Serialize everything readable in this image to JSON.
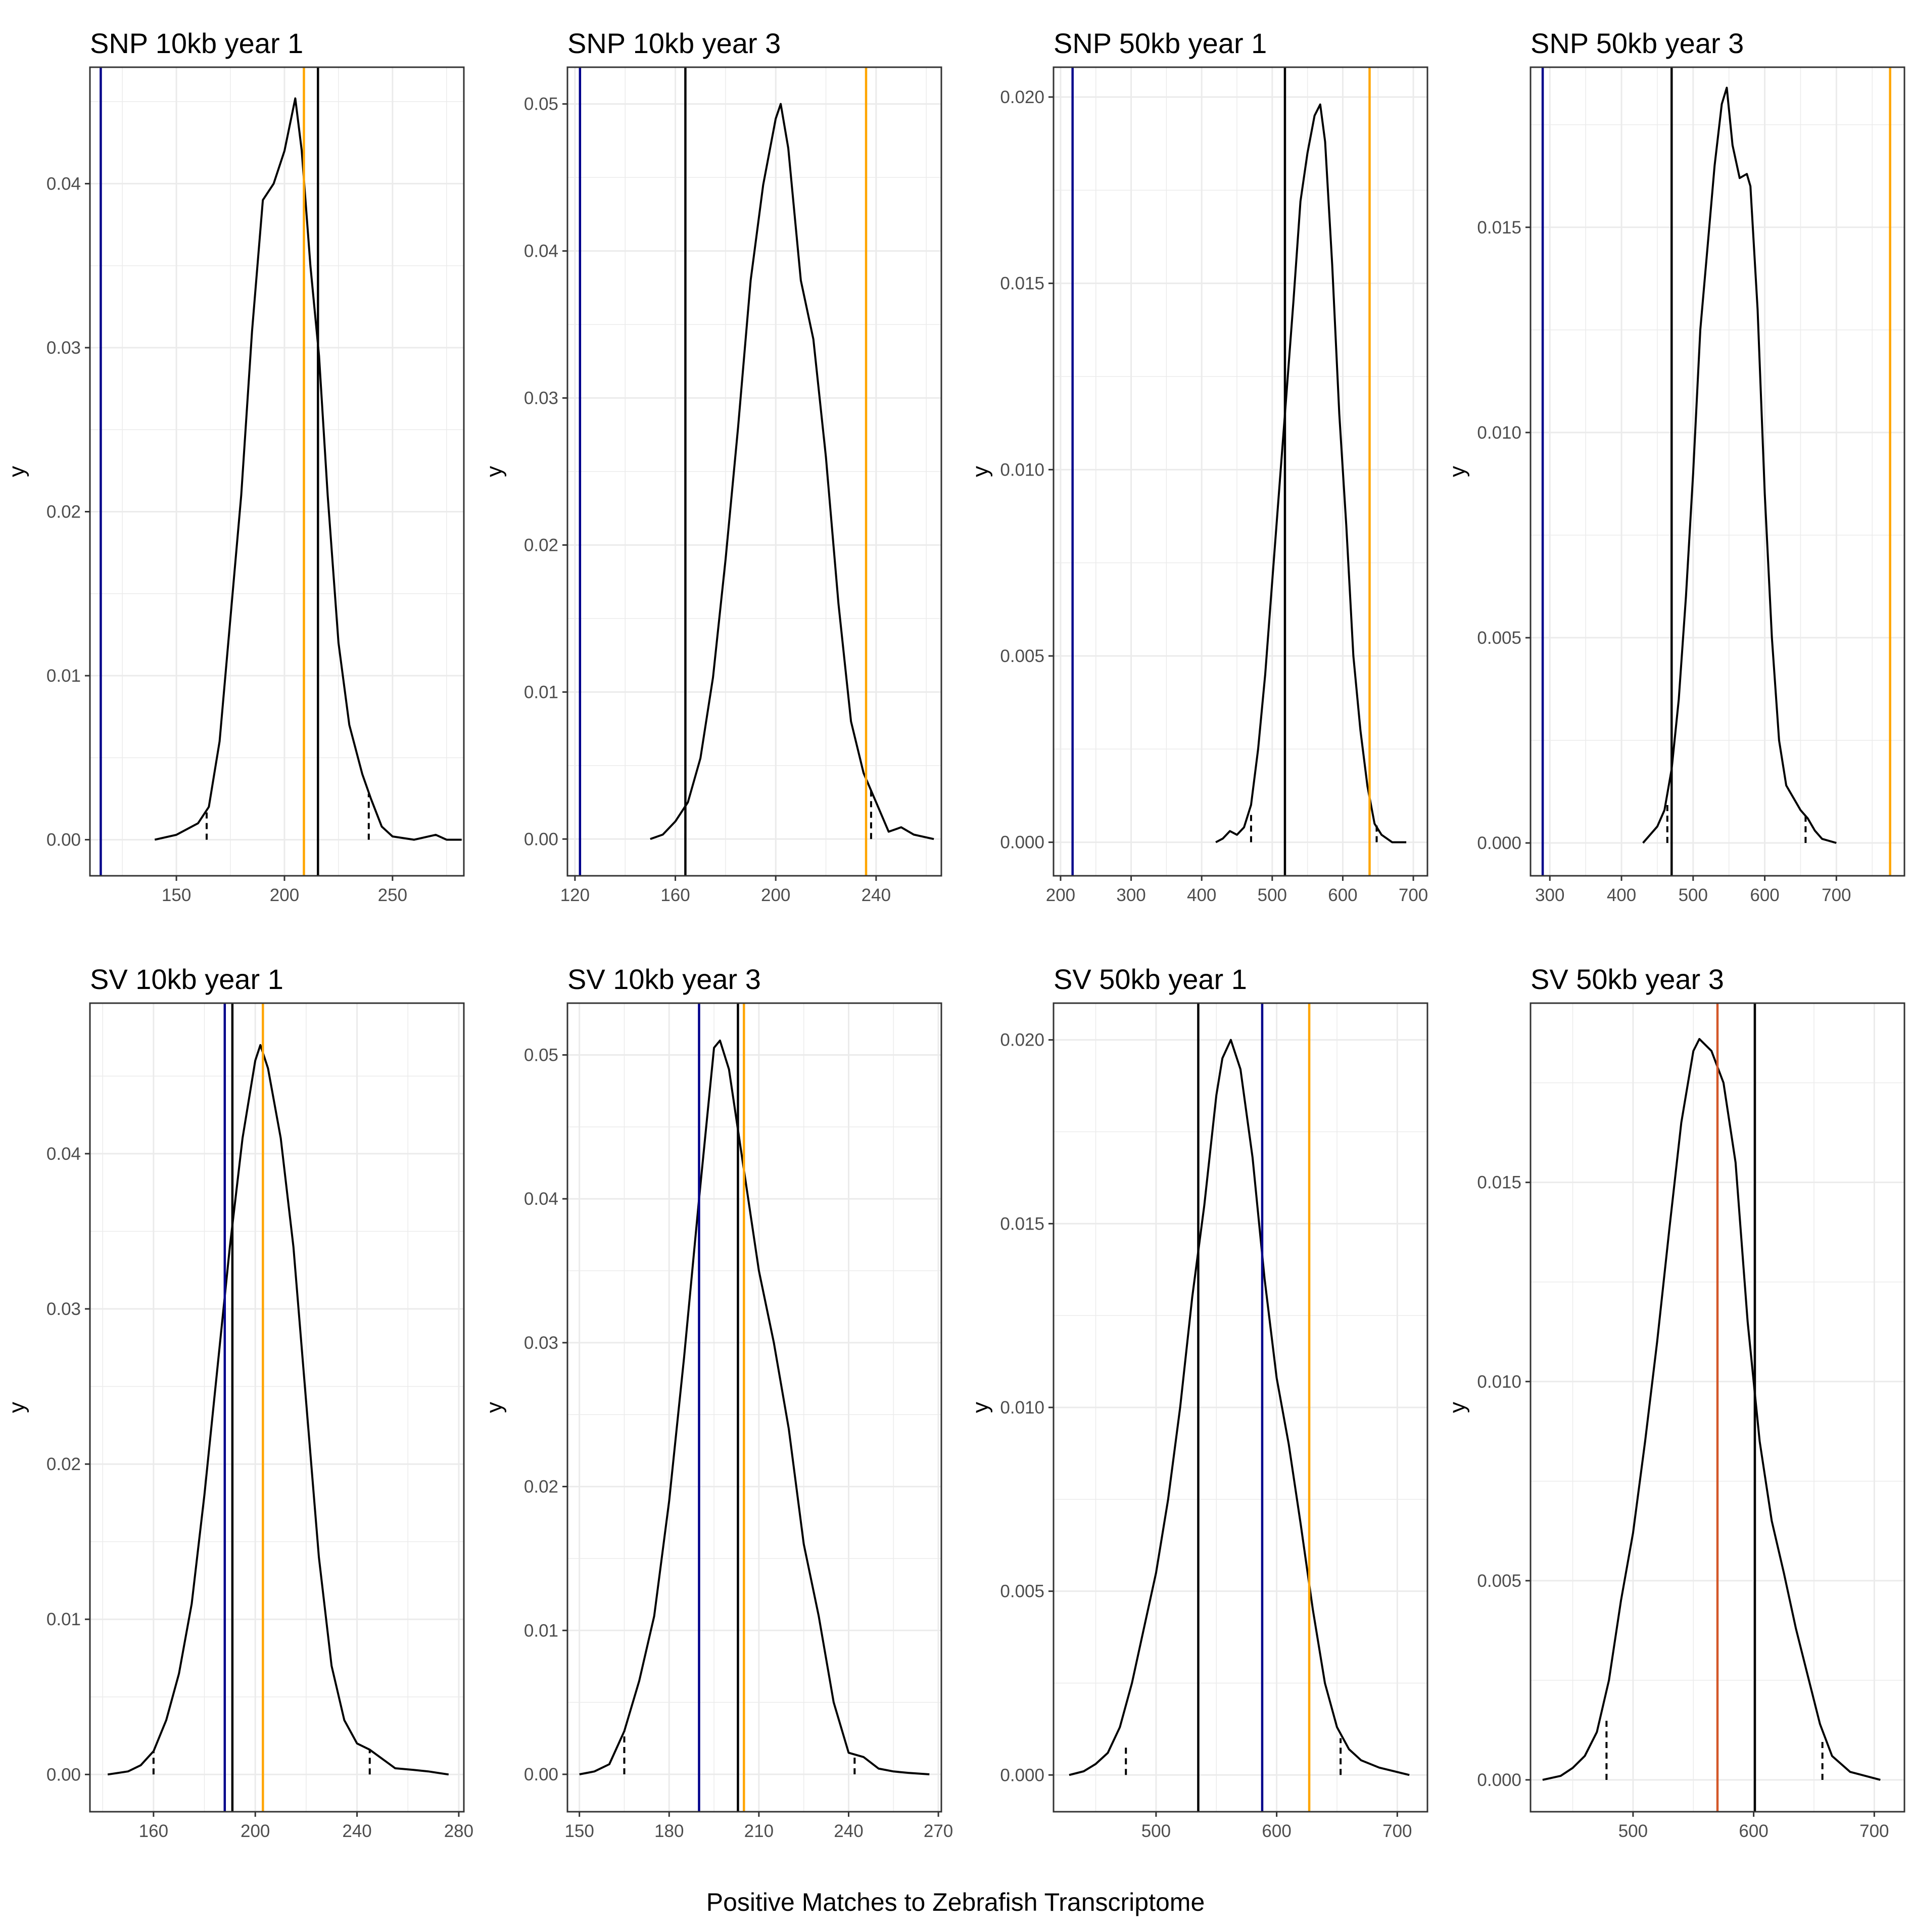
{
  "figure": {
    "xlabel": "Positive Matches to Zebrafish Transcriptome",
    "colors": {
      "blue": "#00008b",
      "orange": "#ffa500",
      "black": "#000000",
      "red": "#d4582a",
      "grid": "#ebebeb",
      "border": "#333333"
    }
  },
  "chart_data": [
    {
      "type": "density",
      "title": "SNP 10kb year 1",
      "xlabel": "",
      "ylabel": "y",
      "xlim": [
        110,
        283
      ],
      "ylim": [
        -0.0022,
        0.0471
      ],
      "xticks": [
        150,
        200,
        250
      ],
      "xtick_labels": [
        "150",
        "200",
        "250"
      ],
      "yticks": [
        0,
        0.01,
        0.02,
        0.03,
        0.04
      ],
      "ytick_labels": [
        "0.00",
        "0.01",
        "0.02",
        "0.03",
        "0.04"
      ],
      "density": [
        [
          140,
          0
        ],
        [
          150,
          0.0003
        ],
        [
          160,
          0.001
        ],
        [
          165,
          0.002
        ],
        [
          170,
          0.006
        ],
        [
          180,
          0.021
        ],
        [
          185,
          0.031
        ],
        [
          190,
          0.039
        ],
        [
          195,
          0.04
        ],
        [
          200,
          0.042
        ],
        [
          205,
          0.0452
        ],
        [
          208,
          0.042
        ],
        [
          212,
          0.035
        ],
        [
          216,
          0.0295
        ],
        [
          220,
          0.021
        ],
        [
          225,
          0.012
        ],
        [
          230,
          0.007
        ],
        [
          236,
          0.004
        ],
        [
          240,
          0.0025
        ],
        [
          245,
          0.0008
        ],
        [
          250,
          0.0002
        ],
        [
          260,
          0
        ],
        [
          270,
          0.0003
        ],
        [
          275,
          0
        ],
        [
          282,
          0
        ]
      ],
      "vlines": [
        {
          "x": 115,
          "color": "blue"
        },
        {
          "x": 209,
          "color": "orange"
        },
        {
          "x": 215.5,
          "color": "black"
        }
      ],
      "dashed": [
        {
          "x": 164,
          "y": 0.0018
        },
        {
          "x": 239,
          "y": 0.0028
        }
      ]
    },
    {
      "type": "density",
      "title": "SNP 10kb year 3",
      "xlabel": "",
      "ylabel": "y",
      "xlim": [
        117,
        266
      ],
      "ylim": [
        -0.0025,
        0.0525
      ],
      "xticks": [
        120,
        160,
        200,
        240
      ],
      "xtick_labels": [
        "120",
        "160",
        "200",
        "240"
      ],
      "yticks": [
        0,
        0.01,
        0.02,
        0.03,
        0.04,
        0.05
      ],
      "ytick_labels": [
        "0.00",
        "0.01",
        "0.02",
        "0.03",
        "0.04",
        "0.05"
      ],
      "density": [
        [
          150,
          0
        ],
        [
          155,
          0.0003
        ],
        [
          160,
          0.0012
        ],
        [
          165,
          0.0025
        ],
        [
          170,
          0.0055
        ],
        [
          175,
          0.011
        ],
        [
          180,
          0.019
        ],
        [
          185,
          0.028
        ],
        [
          190,
          0.038
        ],
        [
          195,
          0.0445
        ],
        [
          200,
          0.049
        ],
        [
          202,
          0.05
        ],
        [
          205,
          0.047
        ],
        [
          210,
          0.038
        ],
        [
          215,
          0.034
        ],
        [
          220,
          0.026
        ],
        [
          225,
          0.016
        ],
        [
          230,
          0.008
        ],
        [
          235,
          0.0045
        ],
        [
          240,
          0.0025
        ],
        [
          245,
          0.0005
        ],
        [
          250,
          0.0008
        ],
        [
          255,
          0.0003
        ],
        [
          263,
          0
        ]
      ],
      "vlines": [
        {
          "x": 122,
          "color": "blue"
        },
        {
          "x": 164,
          "color": "black"
        },
        {
          "x": 236,
          "color": "orange"
        }
      ],
      "dashed": [
        {
          "x": 164,
          "y": 0.0015
        },
        {
          "x": 238,
          "y": 0.0035
        }
      ]
    },
    {
      "type": "density",
      "title": "SNP 50kb year 1",
      "xlabel": "",
      "ylabel": "y",
      "xlim": [
        190,
        720
      ],
      "ylim": [
        -0.0009,
        0.0208
      ],
      "xticks": [
        200,
        300,
        400,
        500,
        600,
        700
      ],
      "xtick_labels": [
        "200",
        "300",
        "400",
        "500",
        "600",
        "700"
      ],
      "yticks": [
        0,
        0.005,
        0.01,
        0.015,
        0.02
      ],
      "ytick_labels": [
        "0.000",
        "0.005",
        "0.010",
        "0.015",
        "0.020"
      ],
      "density": [
        [
          420,
          0
        ],
        [
          430,
          0.0001
        ],
        [
          440,
          0.0003
        ],
        [
          450,
          0.0002
        ],
        [
          460,
          0.0004
        ],
        [
          470,
          0.001
        ],
        [
          480,
          0.0025
        ],
        [
          490,
          0.0045
        ],
        [
          500,
          0.007
        ],
        [
          510,
          0.0095
        ],
        [
          520,
          0.012
        ],
        [
          530,
          0.0145
        ],
        [
          540,
          0.0172
        ],
        [
          550,
          0.0185
        ],
        [
          560,
          0.0195
        ],
        [
          568,
          0.0198
        ],
        [
          575,
          0.0188
        ],
        [
          585,
          0.0155
        ],
        [
          595,
          0.0115
        ],
        [
          605,
          0.0085
        ],
        [
          615,
          0.005
        ],
        [
          625,
          0.003
        ],
        [
          635,
          0.0015
        ],
        [
          645,
          0.0005
        ],
        [
          655,
          0.0002
        ],
        [
          670,
          0
        ],
        [
          690,
          0
        ]
      ],
      "vlines": [
        {
          "x": 217,
          "color": "blue"
        },
        {
          "x": 518,
          "color": "black"
        },
        {
          "x": 638,
          "color": "orange"
        }
      ],
      "dashed": [
        {
          "x": 470,
          "y": 0.0008
        },
        {
          "x": 648,
          "y": 0.0005
        }
      ]
    },
    {
      "type": "density",
      "title": "SNP 50kb year 3",
      "xlabel": "",
      "ylabel": "y",
      "xlim": [
        273,
        795
      ],
      "ylim": [
        -0.0008,
        0.0189
      ],
      "xticks": [
        300,
        400,
        500,
        600,
        700
      ],
      "xtick_labels": [
        "300",
        "400",
        "500",
        "600",
        "700"
      ],
      "yticks": [
        0,
        0.005,
        0.01,
        0.015
      ],
      "ytick_labels": [
        "0.000",
        "0.005",
        "0.010",
        "0.015"
      ],
      "density": [
        [
          430,
          0
        ],
        [
          440,
          0.0002
        ],
        [
          450,
          0.0004
        ],
        [
          460,
          0.0008
        ],
        [
          470,
          0.0018
        ],
        [
          480,
          0.0035
        ],
        [
          490,
          0.006
        ],
        [
          500,
          0.009
        ],
        [
          510,
          0.0125
        ],
        [
          520,
          0.0145
        ],
        [
          530,
          0.0165
        ],
        [
          540,
          0.018
        ],
        [
          547,
          0.0184
        ],
        [
          555,
          0.017
        ],
        [
          565,
          0.0162
        ],
        [
          575,
          0.0163
        ],
        [
          580,
          0.016
        ],
        [
          590,
          0.013
        ],
        [
          600,
          0.0085
        ],
        [
          610,
          0.005
        ],
        [
          620,
          0.0025
        ],
        [
          630,
          0.0014
        ],
        [
          640,
          0.0011
        ],
        [
          650,
          0.0008
        ],
        [
          660,
          0.0006
        ],
        [
          670,
          0.0003
        ],
        [
          680,
          0.0001
        ],
        [
          700,
          0
        ]
      ],
      "vlines": [
        {
          "x": 290,
          "color": "blue"
        },
        {
          "x": 470,
          "color": "black"
        },
        {
          "x": 775,
          "color": "orange"
        }
      ],
      "dashed": [
        {
          "x": 464,
          "y": 0.001
        },
        {
          "x": 657,
          "y": 0.0007
        }
      ]
    },
    {
      "type": "density",
      "title": "SV 10kb year 1",
      "xlabel": "",
      "ylabel": "y",
      "xlim": [
        135,
        282
      ],
      "ylim": [
        -0.0024,
        0.0497
      ],
      "xticks": [
        160,
        200,
        240,
        280
      ],
      "xtick_labels": [
        "160",
        "200",
        "240",
        "280"
      ],
      "yticks": [
        0,
        0.01,
        0.02,
        0.03,
        0.04
      ],
      "ytick_labels": [
        "0.00",
        "0.01",
        "0.02",
        "0.03",
        "0.04"
      ],
      "density": [
        [
          142,
          0
        ],
        [
          150,
          0.0002
        ],
        [
          155,
          0.0006
        ],
        [
          160,
          0.0015
        ],
        [
          165,
          0.0035
        ],
        [
          170,
          0.0065
        ],
        [
          175,
          0.011
        ],
        [
          180,
          0.018
        ],
        [
          185,
          0.026
        ],
        [
          190,
          0.034
        ],
        [
          195,
          0.041
        ],
        [
          200,
          0.046
        ],
        [
          202,
          0.047
        ],
        [
          205,
          0.0455
        ],
        [
          210,
          0.041
        ],
        [
          215,
          0.034
        ],
        [
          220,
          0.024
        ],
        [
          225,
          0.014
        ],
        [
          230,
          0.007
        ],
        [
          235,
          0.0035
        ],
        [
          240,
          0.002
        ],
        [
          245,
          0.0016
        ],
        [
          250,
          0.001
        ],
        [
          255,
          0.0004
        ],
        [
          262,
          0.0003
        ],
        [
          268,
          0.0002
        ],
        [
          276,
          0
        ]
      ],
      "vlines": [
        {
          "x": 188,
          "color": "blue"
        },
        {
          "x": 191,
          "color": "black"
        },
        {
          "x": 203,
          "color": "orange"
        }
      ],
      "dashed": [
        {
          "x": 160,
          "y": 0.0015
        },
        {
          "x": 245,
          "y": 0.0016
        }
      ]
    },
    {
      "type": "density",
      "title": "SV 10kb year 3",
      "xlabel": "",
      "ylabel": "y",
      "xlim": [
        146,
        271
      ],
      "ylim": [
        -0.0026,
        0.0536
      ],
      "xticks": [
        150,
        180,
        210,
        240,
        270
      ],
      "xtick_labels": [
        "150",
        "180",
        "210",
        "240",
        "270"
      ],
      "yticks": [
        0,
        0.01,
        0.02,
        0.03,
        0.04,
        0.05
      ],
      "ytick_labels": [
        "0.00",
        "0.01",
        "0.02",
        "0.03",
        "0.04",
        "0.05"
      ],
      "density": [
        [
          150,
          0
        ],
        [
          155,
          0.0002
        ],
        [
          160,
          0.0007
        ],
        [
          165,
          0.003
        ],
        [
          170,
          0.0065
        ],
        [
          175,
          0.011
        ],
        [
          180,
          0.019
        ],
        [
          185,
          0.029
        ],
        [
          190,
          0.04
        ],
        [
          195,
          0.0505
        ],
        [
          197,
          0.051
        ],
        [
          200,
          0.049
        ],
        [
          205,
          0.042
        ],
        [
          210,
          0.035
        ],
        [
          215,
          0.03
        ],
        [
          220,
          0.024
        ],
        [
          225,
          0.016
        ],
        [
          230,
          0.011
        ],
        [
          235,
          0.005
        ],
        [
          240,
          0.0015
        ],
        [
          245,
          0.0012
        ],
        [
          250,
          0.0004
        ],
        [
          255,
          0.0002
        ],
        [
          260,
          0.0001
        ],
        [
          267,
          0
        ]
      ],
      "vlines": [
        {
          "x": 190,
          "color": "blue"
        },
        {
          "x": 203,
          "color": "black"
        },
        {
          "x": 205,
          "color": "orange"
        }
      ],
      "dashed": [
        {
          "x": 165,
          "y": 0.003
        },
        {
          "x": 242,
          "y": 0.0012
        }
      ]
    },
    {
      "type": "density",
      "title": "SV 50kb year 1",
      "xlabel": "",
      "ylabel": "y",
      "xlim": [
        415,
        725
      ],
      "ylim": [
        -0.001,
        0.021
      ],
      "xticks": [
        500,
        600,
        700
      ],
      "xtick_labels": [
        "500",
        "600",
        "700"
      ],
      "yticks": [
        0,
        0.005,
        0.01,
        0.015,
        0.02
      ],
      "ytick_labels": [
        "0.000",
        "0.005",
        "0.010",
        "0.015",
        "0.020"
      ],
      "density": [
        [
          428,
          0
        ],
        [
          440,
          0.0001
        ],
        [
          450,
          0.0003
        ],
        [
          460,
          0.0006
        ],
        [
          470,
          0.0013
        ],
        [
          480,
          0.0025
        ],
        [
          490,
          0.004
        ],
        [
          500,
          0.0055
        ],
        [
          510,
          0.0075
        ],
        [
          520,
          0.01
        ],
        [
          530,
          0.013
        ],
        [
          540,
          0.0155
        ],
        [
          550,
          0.0185
        ],
        [
          555,
          0.0195
        ],
        [
          562,
          0.02
        ],
        [
          570,
          0.0192
        ],
        [
          580,
          0.0168
        ],
        [
          590,
          0.0135
        ],
        [
          600,
          0.0108
        ],
        [
          610,
          0.009
        ],
        [
          620,
          0.0068
        ],
        [
          630,
          0.0045
        ],
        [
          640,
          0.0025
        ],
        [
          650,
          0.0013
        ],
        [
          660,
          0.0007
        ],
        [
          670,
          0.0004
        ],
        [
          685,
          0.0002
        ],
        [
          710,
          0
        ]
      ],
      "vlines": [
        {
          "x": 535,
          "color": "black"
        },
        {
          "x": 588,
          "color": "blue"
        },
        {
          "x": 627,
          "color": "orange"
        }
      ],
      "dashed": [
        {
          "x": 475,
          "y": 0.0008
        },
        {
          "x": 653,
          "y": 0.001
        }
      ]
    },
    {
      "type": "density",
      "title": "SV 50kb year 3",
      "xlabel": "",
      "ylabel": "y",
      "xlim": [
        415,
        725
      ],
      "ylim": [
        -0.0008,
        0.0195
      ],
      "xticks": [
        500,
        600,
        700
      ],
      "xtick_labels": [
        "500",
        "600",
        "700"
      ],
      "yticks": [
        0,
        0.005,
        0.01,
        0.015
      ],
      "ytick_labels": [
        "0.000",
        "0.005",
        "0.010",
        "0.015"
      ],
      "density": [
        [
          425,
          0
        ],
        [
          440,
          0.0001
        ],
        [
          450,
          0.0003
        ],
        [
          460,
          0.0006
        ],
        [
          470,
          0.0012
        ],
        [
          480,
          0.0025
        ],
        [
          490,
          0.0045
        ],
        [
          500,
          0.0062
        ],
        [
          510,
          0.0085
        ],
        [
          520,
          0.011
        ],
        [
          530,
          0.0138
        ],
        [
          540,
          0.0165
        ],
        [
          550,
          0.0183
        ],
        [
          555,
          0.0186
        ],
        [
          565,
          0.0183
        ],
        [
          575,
          0.0175
        ],
        [
          585,
          0.0155
        ],
        [
          595,
          0.0115
        ],
        [
          605,
          0.0085
        ],
        [
          615,
          0.0065
        ],
        [
          625,
          0.0052
        ],
        [
          635,
          0.0038
        ],
        [
          645,
          0.0026
        ],
        [
          655,
          0.0014
        ],
        [
          665,
          0.0006
        ],
        [
          680,
          0.0002
        ],
        [
          705,
          0
        ]
      ],
      "vlines": [
        {
          "x": 570,
          "color": "red"
        },
        {
          "x": 601,
          "color": "black"
        }
      ],
      "dashed": [
        {
          "x": 478,
          "y": 0.0015
        },
        {
          "x": 657,
          "y": 0.001
        }
      ]
    }
  ]
}
